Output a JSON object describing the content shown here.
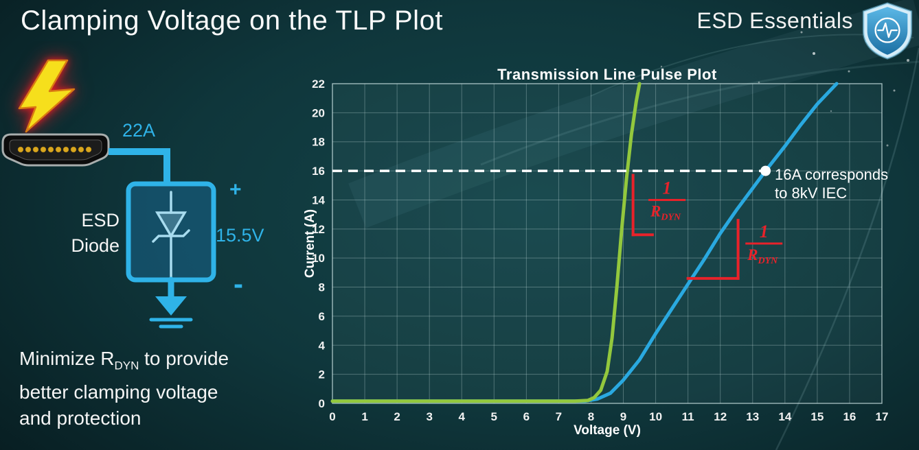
{
  "slide": {
    "title": "Clamping Voltage on the TLP Plot",
    "brand": "ESD Essentials"
  },
  "colors": {
    "background_teal": "#0f363b",
    "accent_cyan": "#2fb3e8",
    "curve_green": "#93c83d",
    "curve_blue": "#2aa9e0",
    "annotation_red": "#e8222a",
    "text_white": "#f2f2f2",
    "bolt_yellow": "#f6df1c"
  },
  "diagram": {
    "surge_current": "22A",
    "device_label_line1": "ESD",
    "device_label_line2": "Diode",
    "plus": "+",
    "clamp_voltage": "15.5V",
    "minus": "-"
  },
  "caption": {
    "line1_pre": "Minimize R",
    "line1_sub": "DYN",
    "line1_post": " to provide",
    "line2": "better clamping voltage",
    "line3": "and protection"
  },
  "chart_data": {
    "type": "line",
    "title": "Transmission Line Pulse Plot",
    "xlabel": "Voltage (V)",
    "ylabel": "Current (A)",
    "xlim": [
      0,
      17
    ],
    "ylim": [
      0,
      22
    ],
    "x_tick_step": 1,
    "y_tick_step": 2,
    "grid": true,
    "legend": "none",
    "series": [
      {
        "name": "blue-curve",
        "color": "#2aa9e0",
        "points": [
          [
            0,
            0.15
          ],
          [
            7.8,
            0.15
          ],
          [
            8.2,
            0.3
          ],
          [
            8.6,
            0.7
          ],
          [
            9.0,
            1.6
          ],
          [
            9.5,
            3.0
          ],
          [
            10.0,
            4.8
          ],
          [
            10.5,
            6.5
          ],
          [
            11.0,
            8.2
          ],
          [
            11.5,
            9.9
          ],
          [
            12.0,
            11.7
          ],
          [
            12.5,
            13.3
          ],
          [
            13.0,
            14.8
          ],
          [
            13.4,
            16.0
          ],
          [
            14.0,
            17.7
          ],
          [
            14.5,
            19.2
          ],
          [
            15.0,
            20.6
          ],
          [
            15.6,
            22.0
          ]
        ]
      },
      {
        "name": "green-curve",
        "color": "#93c83d",
        "points": [
          [
            0,
            0.15
          ],
          [
            7.5,
            0.15
          ],
          [
            7.9,
            0.2
          ],
          [
            8.1,
            0.4
          ],
          [
            8.3,
            0.9
          ],
          [
            8.5,
            2.2
          ],
          [
            8.65,
            4.5
          ],
          [
            8.8,
            8.0
          ],
          [
            8.95,
            12.0
          ],
          [
            9.1,
            15.5
          ],
          [
            9.25,
            18.5
          ],
          [
            9.4,
            20.8
          ],
          [
            9.5,
            22.0
          ]
        ]
      }
    ],
    "reference_line": {
      "current": 16,
      "from_voltage": 0,
      "to_voltage": 13.4,
      "style": "dashed-white"
    },
    "reference_point": {
      "voltage": 13.4,
      "current": 16
    },
    "point_label": {
      "line1": "16A corresponds",
      "line2": "to 8kV IEC"
    },
    "fraction": {
      "numerator": "1",
      "denominator": "R",
      "denominator_sub": "DYN"
    },
    "slope_annotations": [
      {
        "series": "green-curve",
        "segments": [
          [
            [
              9.3,
              15.7
            ],
            [
              9.3,
              11.6
            ]
          ],
          [
            [
              9.3,
              11.6
            ],
            [
              9.9,
              11.6
            ]
          ]
        ],
        "fraction_center": [
          10.35,
          14.0
        ]
      },
      {
        "series": "blue-curve",
        "segments": [
          [
            [
              11.0,
              8.6
            ],
            [
              12.55,
              8.6
            ]
          ],
          [
            [
              12.55,
              8.6
            ],
            [
              12.55,
              12.6
            ]
          ]
        ],
        "fraction_center": [
          13.35,
          11.0
        ]
      }
    ]
  }
}
